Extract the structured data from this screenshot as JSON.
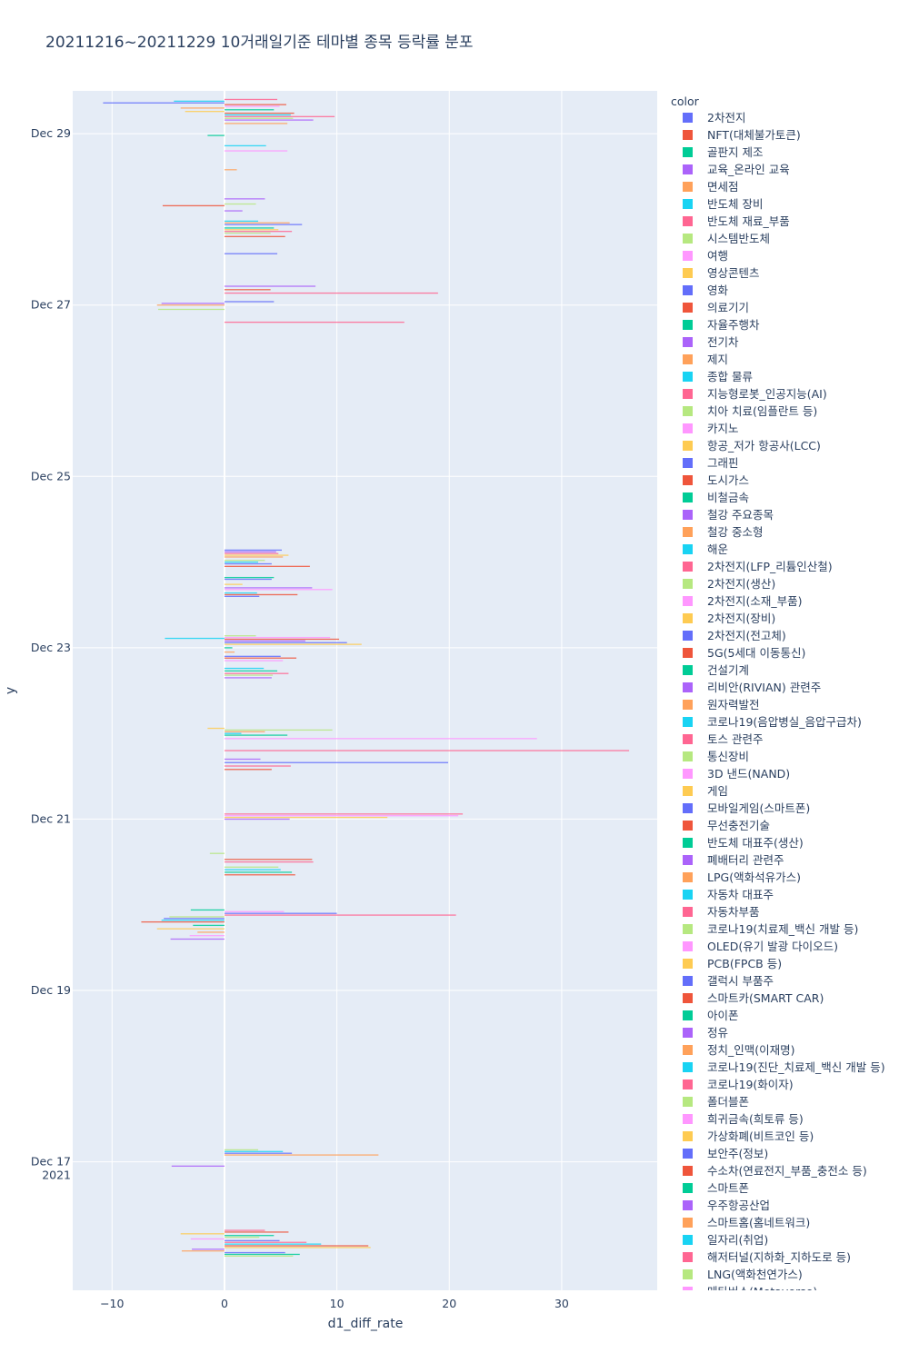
{
  "chart_data": {
    "type": "bar",
    "orientation": "horizontal",
    "title": "20211216~20211229 10거래일기준 테마별 종목 등락률 분포",
    "xlabel": "d1_diff_rate",
    "ylabel": "y",
    "xlim": [
      -13.5,
      38.5
    ],
    "x_ticks": [
      -10,
      0,
      10,
      20,
      30
    ],
    "x_tick_labels": [
      "−10",
      "0",
      "10",
      "20",
      "30"
    ],
    "y_range_days": [
      "2021-12-16 01:00",
      "2021-12-29 12:00"
    ],
    "y_ticks": [
      {
        "date": "2021-12-17",
        "label": "Dec 17",
        "sublabel": "2021"
      },
      {
        "date": "2021-12-19",
        "label": "Dec 19",
        "sublabel": ""
      },
      {
        "date": "2021-12-21",
        "label": "Dec 21",
        "sublabel": ""
      },
      {
        "date": "2021-12-23",
        "label": "Dec 23",
        "sublabel": ""
      },
      {
        "date": "2021-12-25",
        "label": "Dec 25",
        "sublabel": ""
      },
      {
        "date": "2021-12-27",
        "label": "Dec 27",
        "sublabel": ""
      },
      {
        "date": "2021-12-29",
        "label": "Dec 29",
        "sublabel": ""
      }
    ],
    "legend_title": "color",
    "legend": [
      {
        "name": "2차전지",
        "color": "#636efa"
      },
      {
        "name": "NFT(대체불가토큰)",
        "color": "#EF553B"
      },
      {
        "name": "골판지 제조",
        "color": "#00cc96"
      },
      {
        "name": "교육_온라인 교육",
        "color": "#ab63fa"
      },
      {
        "name": "면세점",
        "color": "#FFA15A"
      },
      {
        "name": "반도체 장비",
        "color": "#19d3f3"
      },
      {
        "name": "반도체 재료_부품",
        "color": "#FF6692"
      },
      {
        "name": "시스템반도체",
        "color": "#B6E880"
      },
      {
        "name": "여행",
        "color": "#FF97FF"
      },
      {
        "name": "영상콘텐츠",
        "color": "#FECB52"
      },
      {
        "name": "영화",
        "color": "#636efa"
      },
      {
        "name": "의료기기",
        "color": "#EF553B"
      },
      {
        "name": "자율주행차",
        "color": "#00cc96"
      },
      {
        "name": "전기차",
        "color": "#ab63fa"
      },
      {
        "name": "제지",
        "color": "#FFA15A"
      },
      {
        "name": "종합 물류",
        "color": "#19d3f3"
      },
      {
        "name": "지능형로봇_인공지능(AI)",
        "color": "#FF6692"
      },
      {
        "name": "치아 치료(임플란트 등)",
        "color": "#B6E880"
      },
      {
        "name": "카지노",
        "color": "#FF97FF"
      },
      {
        "name": "항공_저가 항공사(LCC)",
        "color": "#FECB52"
      },
      {
        "name": "그래핀",
        "color": "#636efa"
      },
      {
        "name": "도시가스",
        "color": "#EF553B"
      },
      {
        "name": "비철금속",
        "color": "#00cc96"
      },
      {
        "name": "철강 주요종목",
        "color": "#ab63fa"
      },
      {
        "name": "철강 중소형",
        "color": "#FFA15A"
      },
      {
        "name": "해운",
        "color": "#19d3f3"
      },
      {
        "name": "2차전지(LFP_리튬인산철)",
        "color": "#FF6692"
      },
      {
        "name": "2차전지(생산)",
        "color": "#B6E880"
      },
      {
        "name": "2차전지(소재_부품)",
        "color": "#FF97FF"
      },
      {
        "name": "2차전지(장비)",
        "color": "#FECB52"
      },
      {
        "name": "2차전지(전고체)",
        "color": "#636efa"
      },
      {
        "name": "5G(5세대 이동통신)",
        "color": "#EF553B"
      },
      {
        "name": "건설기계",
        "color": "#00cc96"
      },
      {
        "name": "리비안(RIVIAN) 관련주",
        "color": "#ab63fa"
      },
      {
        "name": "원자력발전",
        "color": "#FFA15A"
      },
      {
        "name": "코로나19(음압병실_음압구급차)",
        "color": "#19d3f3"
      },
      {
        "name": "토스 관련주",
        "color": "#FF6692"
      },
      {
        "name": "통신장비",
        "color": "#B6E880"
      },
      {
        "name": "3D 낸드(NAND)",
        "color": "#FF97FF"
      },
      {
        "name": "게임",
        "color": "#FECB52"
      },
      {
        "name": "모바일게임(스마트폰)",
        "color": "#636efa"
      },
      {
        "name": "무선충전기술",
        "color": "#EF553B"
      },
      {
        "name": "반도체 대표주(생산)",
        "color": "#00cc96"
      },
      {
        "name": "폐배터리 관련주",
        "color": "#ab63fa"
      },
      {
        "name": "LPG(액화석유가스)",
        "color": "#FFA15A"
      },
      {
        "name": "자동차 대표주",
        "color": "#19d3f3"
      },
      {
        "name": "자동차부품",
        "color": "#FF6692"
      },
      {
        "name": "코로나19(치료제_백신 개발 등)",
        "color": "#B6E880"
      },
      {
        "name": "OLED(유기 발광 다이오드)",
        "color": "#FF97FF"
      },
      {
        "name": "PCB(FPCB 등)",
        "color": "#FECB52"
      },
      {
        "name": "갤럭시 부품주",
        "color": "#636efa"
      },
      {
        "name": "스마트카(SMART CAR)",
        "color": "#EF553B"
      },
      {
        "name": "아이폰",
        "color": "#00cc96"
      },
      {
        "name": "정유",
        "color": "#ab63fa"
      },
      {
        "name": "정치_인맥(이재명)",
        "color": "#FFA15A"
      },
      {
        "name": "코로나19(진단_치료제_백신 개발 등)",
        "color": "#19d3f3"
      },
      {
        "name": "코로나19(화이자)",
        "color": "#FF6692"
      },
      {
        "name": "폴더블폰",
        "color": "#B6E880"
      },
      {
        "name": "희귀금속(희토류 등)",
        "color": "#FF97FF"
      },
      {
        "name": "가상화폐(비트코인 등)",
        "color": "#FECB52"
      },
      {
        "name": "보안주(정보)",
        "color": "#636efa"
      },
      {
        "name": "수소차(연료전지_부품_충전소 등)",
        "color": "#EF553B"
      },
      {
        "name": "스마트폰",
        "color": "#00cc96"
      },
      {
        "name": "우주항공산업",
        "color": "#ab63fa"
      },
      {
        "name": "스마트홈(홈네트워크)",
        "color": "#FFA15A"
      },
      {
        "name": "일자리(취업)",
        "color": "#19d3f3"
      },
      {
        "name": "해저터널(지하화_지하도로 등)",
        "color": "#FF6692"
      },
      {
        "name": "LNG(액화천연가스)",
        "color": "#B6E880"
      },
      {
        "name": "메타버스(Metaverse)",
        "color": "#FF97FF"
      }
    ],
    "bars": [
      {
        "day": 15.9,
        "v": 6.1,
        "c": 7
      },
      {
        "day": 15.92,
        "v": 6.7,
        "c": 2
      },
      {
        "day": 15.94,
        "v": 5.4,
        "c": 0
      },
      {
        "day": 15.96,
        "v": -3.8,
        "c": 4
      },
      {
        "day": 15.98,
        "v": -2.9,
        "c": 3
      },
      {
        "day": 16.0,
        "v": 13.0,
        "c": 9
      },
      {
        "day": 16.02,
        "v": 12.8,
        "c": 1
      },
      {
        "day": 16.04,
        "v": 8.6,
        "c": 5
      },
      {
        "day": 16.06,
        "v": 7.3,
        "c": 6
      },
      {
        "day": 16.08,
        "v": 4.9,
        "c": 0
      },
      {
        "day": 16.1,
        "v": -3.0,
        "c": 8
      },
      {
        "day": 16.12,
        "v": 3.1,
        "c": 7
      },
      {
        "day": 16.14,
        "v": 4.4,
        "c": 2
      },
      {
        "day": 16.16,
        "v": -3.9,
        "c": 9
      },
      {
        "day": 16.18,
        "v": 5.7,
        "c": 1
      },
      {
        "day": 16.2,
        "v": 3.6,
        "c": 6
      },
      {
        "day": 16.95,
        "v": -4.7,
        "c": 3
      },
      {
        "day": 17.08,
        "v": 13.7,
        "c": 4
      },
      {
        "day": 17.1,
        "v": 6.0,
        "c": 0
      },
      {
        "day": 17.12,
        "v": 5.2,
        "c": 5
      },
      {
        "day": 17.14,
        "v": 3.0,
        "c": 7
      },
      {
        "day": 19.6,
        "v": -4.8,
        "c": 3
      },
      {
        "day": 19.64,
        "v": -3.1,
        "c": 8
      },
      {
        "day": 19.68,
        "v": -2.4,
        "c": 4
      },
      {
        "day": 19.72,
        "v": -6.0,
        "c": 9
      },
      {
        "day": 19.76,
        "v": -2.8,
        "c": 2
      },
      {
        "day": 19.8,
        "v": -7.4,
        "c": 1
      },
      {
        "day": 19.82,
        "v": -5.6,
        "c": 5
      },
      {
        "day": 19.84,
        "v": -5.4,
        "c": 0
      },
      {
        "day": 19.86,
        "v": -4.9,
        "c": 7
      },
      {
        "day": 19.88,
        "v": 20.6,
        "c": 6
      },
      {
        "day": 19.9,
        "v": 10.0,
        "c": 10
      },
      {
        "day": 19.92,
        "v": 5.3,
        "c": 8
      },
      {
        "day": 19.94,
        "v": -3.0,
        "c": 2
      },
      {
        "day": 20.35,
        "v": 6.3,
        "c": 1
      },
      {
        "day": 20.38,
        "v": 6.0,
        "c": 2
      },
      {
        "day": 20.41,
        "v": 5.0,
        "c": 5
      },
      {
        "day": 20.44,
        "v": 4.8,
        "c": 7
      },
      {
        "day": 20.5,
        "v": 7.9,
        "c": 6
      },
      {
        "day": 20.53,
        "v": 7.8,
        "c": 1
      },
      {
        "day": 20.6,
        "v": -1.3,
        "c": 7
      },
      {
        "day": 21.0,
        "v": 5.8,
        "c": 3
      },
      {
        "day": 21.02,
        "v": 14.5,
        "c": 9
      },
      {
        "day": 21.04,
        "v": 20.8,
        "c": 8
      },
      {
        "day": 21.06,
        "v": 21.2,
        "c": 6
      },
      {
        "day": 21.58,
        "v": 4.2,
        "c": 1
      },
      {
        "day": 21.62,
        "v": 5.9,
        "c": 6
      },
      {
        "day": 21.66,
        "v": 19.9,
        "c": 0
      },
      {
        "day": 21.7,
        "v": 3.2,
        "c": 3
      },
      {
        "day": 21.8,
        "v": 36.0,
        "c": 6
      },
      {
        "day": 21.94,
        "v": 27.8,
        "c": 8
      },
      {
        "day": 21.98,
        "v": 5.6,
        "c": 2
      },
      {
        "day": 22.0,
        "v": 1.5,
        "c": 5
      },
      {
        "day": 22.02,
        "v": 3.6,
        "c": 4
      },
      {
        "day": 22.04,
        "v": 9.6,
        "c": 7
      },
      {
        "day": 22.06,
        "v": -1.5,
        "c": 9
      },
      {
        "day": 22.65,
        "v": 4.2,
        "c": 3
      },
      {
        "day": 22.68,
        "v": 4.3,
        "c": 7
      },
      {
        "day": 22.7,
        "v": 5.7,
        "c": 6
      },
      {
        "day": 22.73,
        "v": 4.7,
        "c": 2
      },
      {
        "day": 22.76,
        "v": 3.5,
        "c": 5
      },
      {
        "day": 22.85,
        "v": 5.2,
        "c": 8
      },
      {
        "day": 22.88,
        "v": 6.4,
        "c": 1
      },
      {
        "day": 22.9,
        "v": 5.0,
        "c": 10
      },
      {
        "day": 22.95,
        "v": 0.9,
        "c": 4
      },
      {
        "day": 23.0,
        "v": 0.7,
        "c": 2
      },
      {
        "day": 23.04,
        "v": 12.2,
        "c": 9
      },
      {
        "day": 23.06,
        "v": 10.9,
        "c": 0
      },
      {
        "day": 23.08,
        "v": 7.2,
        "c": 3
      },
      {
        "day": 23.1,
        "v": 10.2,
        "c": 1
      },
      {
        "day": 23.11,
        "v": -5.3,
        "c": 5
      },
      {
        "day": 23.12,
        "v": 9.4,
        "c": 8
      },
      {
        "day": 23.14,
        "v": 2.8,
        "c": 7
      },
      {
        "day": 23.6,
        "v": 3.1,
        "c": 0
      },
      {
        "day": 23.62,
        "v": 6.5,
        "c": 1
      },
      {
        "day": 23.64,
        "v": 2.9,
        "c": 5
      },
      {
        "day": 23.68,
        "v": 9.6,
        "c": 8
      },
      {
        "day": 23.7,
        "v": 7.8,
        "c": 3
      },
      {
        "day": 23.74,
        "v": 1.6,
        "c": 9
      },
      {
        "day": 23.8,
        "v": 4.2,
        "c": 10
      },
      {
        "day": 23.82,
        "v": 4.4,
        "c": 2
      },
      {
        "day": 23.95,
        "v": 7.6,
        "c": 1
      },
      {
        "day": 23.98,
        "v": 4.2,
        "c": 0
      },
      {
        "day": 24.0,
        "v": 3.0,
        "c": 5
      },
      {
        "day": 24.02,
        "v": 3.6,
        "c": 7
      },
      {
        "day": 24.06,
        "v": 5.2,
        "c": 4
      },
      {
        "day": 24.08,
        "v": 5.7,
        "c": 9
      },
      {
        "day": 24.1,
        "v": 4.8,
        "c": 6
      },
      {
        "day": 24.12,
        "v": 4.6,
        "c": 3
      },
      {
        "day": 24.14,
        "v": 5.1,
        "c": 0
      },
      {
        "day": 26.8,
        "v": 16.0,
        "c": 6
      },
      {
        "day": 26.95,
        "v": -5.9,
        "c": 7
      },
      {
        "day": 27.0,
        "v": -6.0,
        "c": 4
      },
      {
        "day": 27.02,
        "v": -5.6,
        "c": 3
      },
      {
        "day": 27.04,
        "v": 4.4,
        "c": 0
      },
      {
        "day": 27.14,
        "v": 19.0,
        "c": 6
      },
      {
        "day": 27.18,
        "v": 4.1,
        "c": 1
      },
      {
        "day": 27.22,
        "v": 8.1,
        "c": 3
      },
      {
        "day": 27.6,
        "v": 4.7,
        "c": 0
      },
      {
        "day": 27.8,
        "v": 5.4,
        "c": 1
      },
      {
        "day": 27.84,
        "v": 4.1,
        "c": 7
      },
      {
        "day": 27.86,
        "v": 6.0,
        "c": 6
      },
      {
        "day": 27.88,
        "v": 4.8,
        "c": 9
      },
      {
        "day": 27.9,
        "v": 4.4,
        "c": 2
      },
      {
        "day": 27.94,
        "v": 6.9,
        "c": 0
      },
      {
        "day": 27.96,
        "v": 5.8,
        "c": 4
      },
      {
        "day": 27.98,
        "v": 3.0,
        "c": 5
      },
      {
        "day": 28.1,
        "v": 1.6,
        "c": 3
      },
      {
        "day": 28.16,
        "v": -5.5,
        "c": 1
      },
      {
        "day": 28.18,
        "v": 2.8,
        "c": 7
      },
      {
        "day": 28.24,
        "v": 3.6,
        "c": 3
      },
      {
        "day": 28.58,
        "v": 1.1,
        "c": 4
      },
      {
        "day": 28.8,
        "v": 5.6,
        "c": 8
      },
      {
        "day": 28.86,
        "v": 3.7,
        "c": 5
      },
      {
        "day": 28.98,
        "v": -1.5,
        "c": 2
      },
      {
        "day": 29.12,
        "v": 5.6,
        "c": 4
      },
      {
        "day": 29.16,
        "v": 7.9,
        "c": 3
      },
      {
        "day": 29.18,
        "v": 6.1,
        "c": 7
      },
      {
        "day": 29.2,
        "v": 9.8,
        "c": 6
      },
      {
        "day": 29.22,
        "v": 5.9,
        "c": 5
      },
      {
        "day": 29.24,
        "v": 6.2,
        "c": 1
      },
      {
        "day": 29.26,
        "v": -3.5,
        "c": 9
      },
      {
        "day": 29.28,
        "v": 4.4,
        "c": 2
      },
      {
        "day": 29.3,
        "v": -3.9,
        "c": 4
      },
      {
        "day": 29.32,
        "v": 4.9,
        "c": 8
      },
      {
        "day": 29.34,
        "v": 5.5,
        "c": 1
      },
      {
        "day": 29.36,
        "v": -10.8,
        "c": 0
      },
      {
        "day": 29.38,
        "v": -4.5,
        "c": 5
      },
      {
        "day": 29.4,
        "v": 4.7,
        "c": 6
      }
    ]
  }
}
